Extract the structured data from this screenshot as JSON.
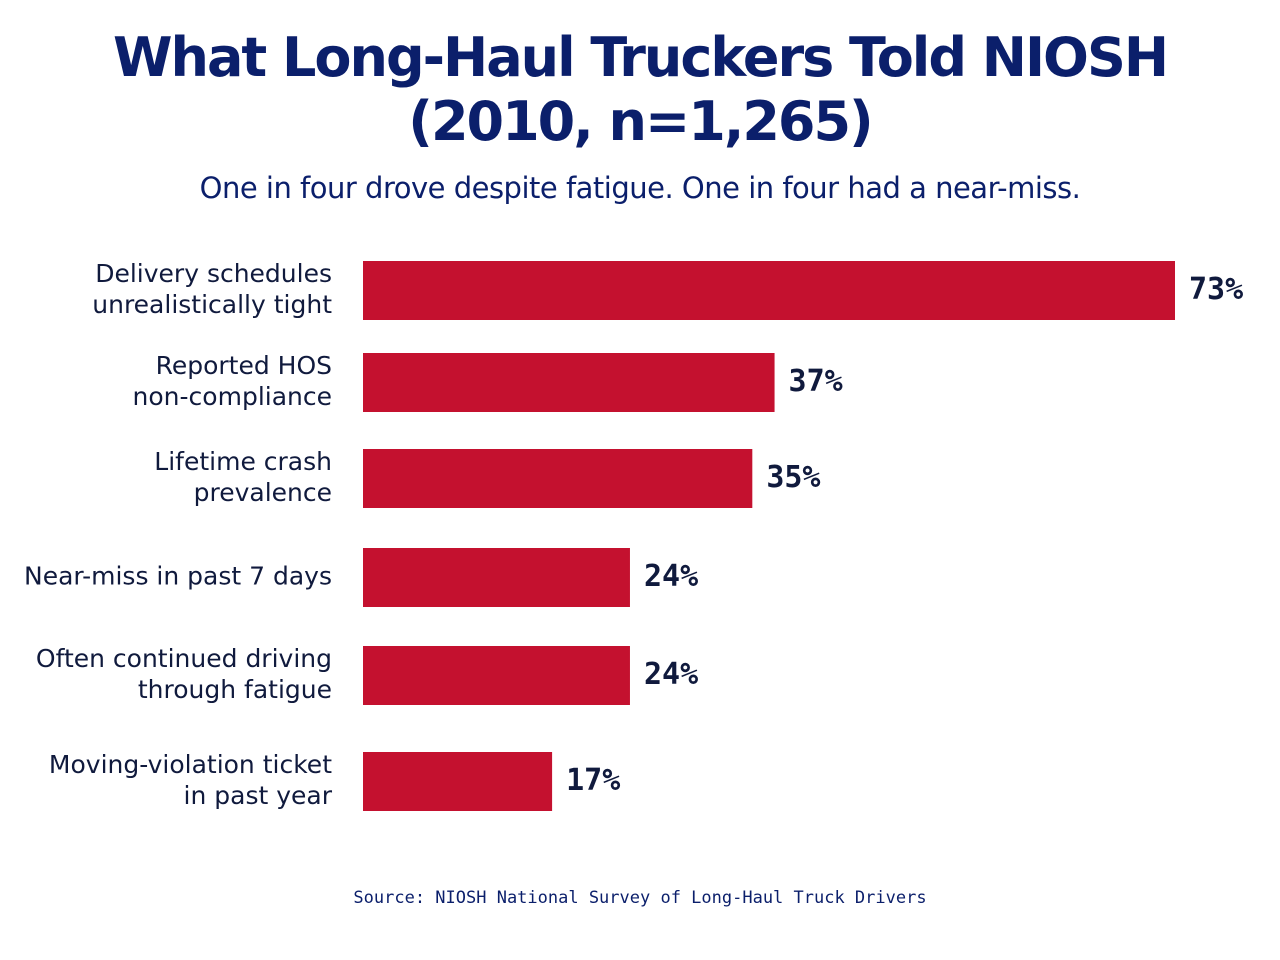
{
  "colors": {
    "title": "#0b1f6b",
    "subtitle": "#0b1f6b",
    "bar": "#c4112f",
    "label": "#101a3d",
    "value": "#101a3d",
    "source": "#0b1f6b",
    "background": "#ffffff"
  },
  "chart_data": {
    "type": "bar",
    "orientation": "horizontal",
    "title": "What Long-Haul Truckers Told NIOSH (2010, n=1,265)",
    "subtitle": "One in four drove despite fatigue. One in four had a near-miss.",
    "xlim": [
      0,
      73
    ],
    "grid": false,
    "categories": [
      [
        "Delivery schedules",
        "unrealistically tight"
      ],
      [
        "Reported HOS",
        "non-compliance"
      ],
      [
        "Lifetime crash",
        "prevalence"
      ],
      [
        "Near-miss in past 7 days"
      ],
      [
        "Often continued driving",
        "through fatigue"
      ],
      [
        "Moving-violation ticket",
        "in past year"
      ]
    ],
    "values": [
      73,
      37,
      35,
      24,
      24,
      17
    ],
    "value_labels": [
      "73%",
      "37%",
      "35%",
      "24%",
      "24%",
      "17%"
    ],
    "source": "Source: NIOSH National Survey of Long-Haul Truck Drivers"
  }
}
